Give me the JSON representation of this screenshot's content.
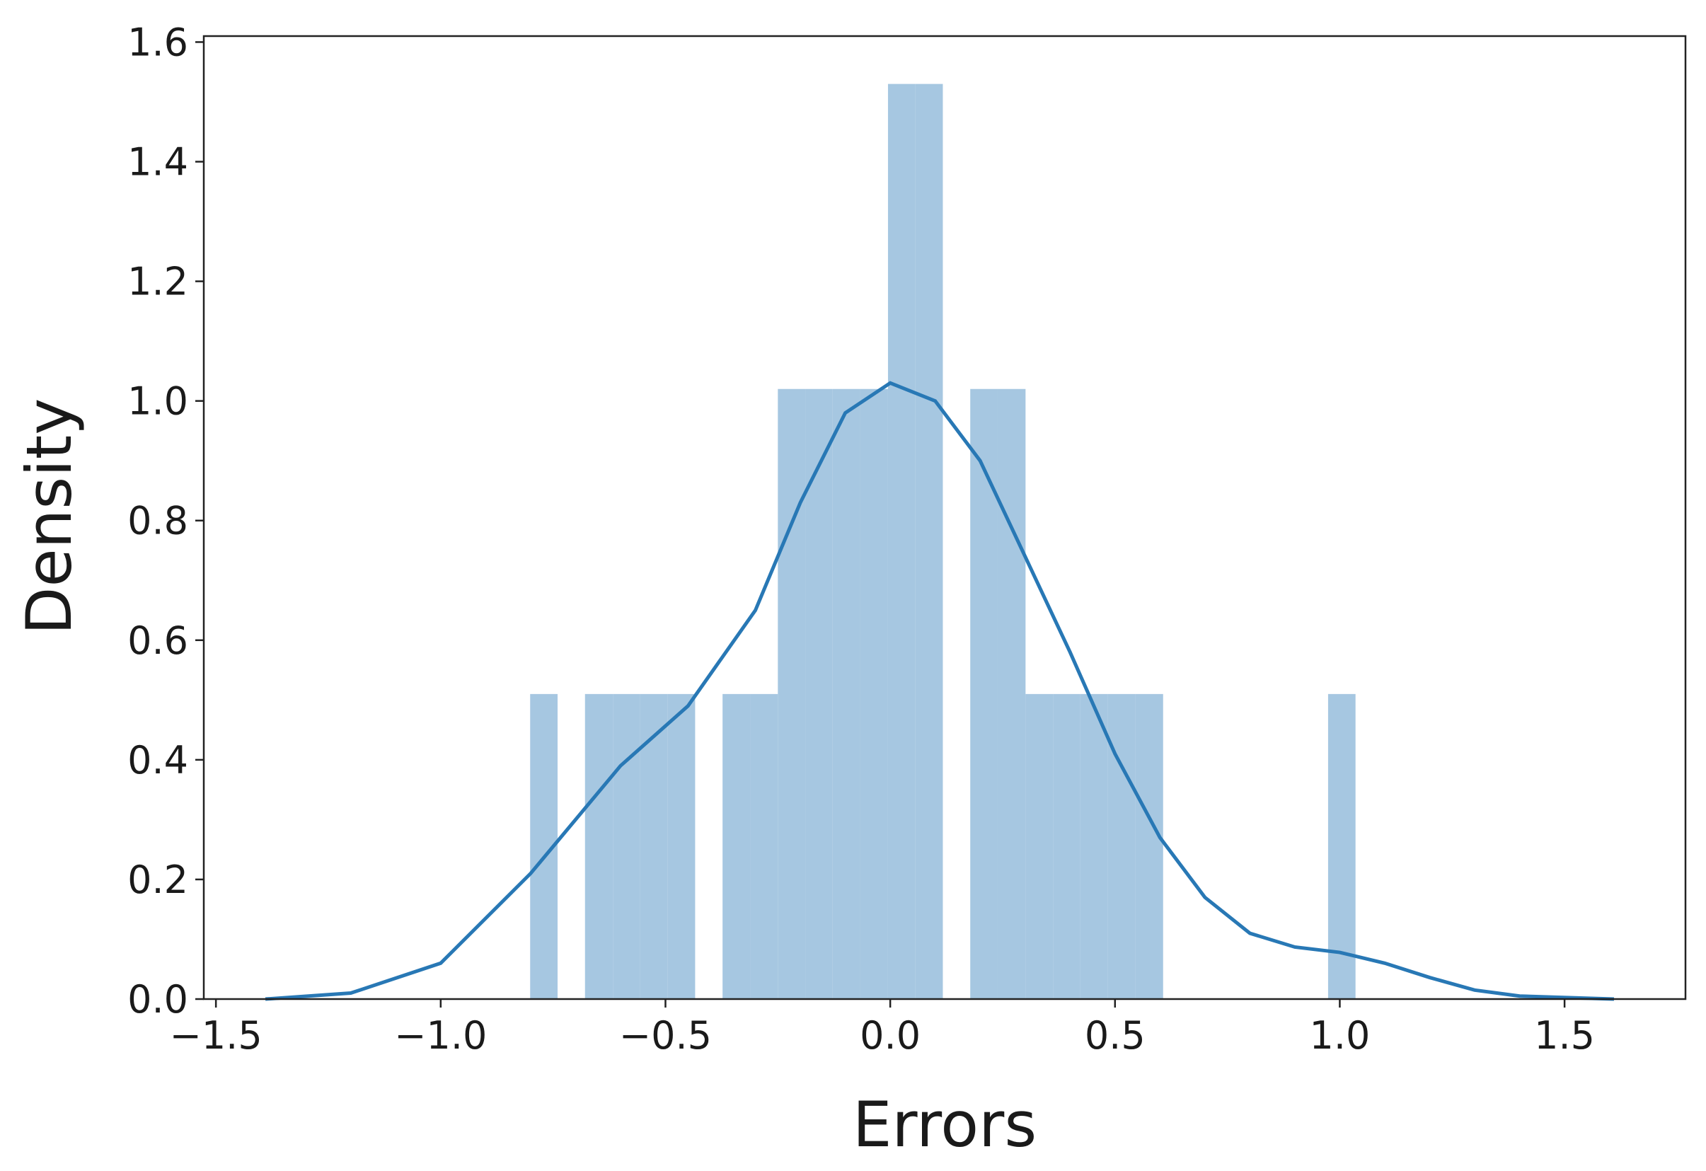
{
  "chart_data": {
    "type": "histogram",
    "xlabel": "Errors",
    "ylabel": "Density",
    "bins": [
      -0.801,
      -0.74,
      -0.679,
      -0.617,
      -0.556,
      -0.495,
      -0.434,
      -0.373,
      -0.311,
      -0.25,
      -0.189,
      -0.128,
      -0.067,
      -0.005,
      0.056,
      0.117,
      0.178,
      0.239,
      0.301,
      0.362,
      0.423,
      0.484,
      0.545,
      0.607,
      0.668,
      0.729,
      0.79,
      0.851,
      0.913,
      0.974,
      1.035
    ],
    "values": [
      0.51,
      0,
      0.51,
      0.51,
      0.51,
      0.51,
      0,
      0.51,
      0.51,
      1.02,
      1.02,
      1.02,
      1.02,
      1.53,
      1.53,
      0,
      1.02,
      1.02,
      0.51,
      0.51,
      0.51,
      0.51,
      0.51,
      0,
      0,
      0,
      0,
      0,
      0,
      0.51
    ],
    "color": "#a6c7e1",
    "kde": {
      "color": "#2878b5",
      "x": [
        -1.39,
        -1.2,
        -1.0,
        -0.8,
        -0.6,
        -0.45,
        -0.3,
        -0.2,
        -0.1,
        0.0,
        0.1,
        0.2,
        0.3,
        0.4,
        0.5,
        0.6,
        0.7,
        0.8,
        0.9,
        1.0,
        1.1,
        1.2,
        1.3,
        1.4,
        1.61
      ],
      "y": [
        0.0,
        0.01,
        0.06,
        0.21,
        0.39,
        0.49,
        0.65,
        0.83,
        0.98,
        1.03,
        1.0,
        0.9,
        0.74,
        0.58,
        0.41,
        0.27,
        0.17,
        0.11,
        0.087,
        0.078,
        0.06,
        0.036,
        0.015,
        0.005,
        0.0
      ]
    },
    "xlim": [
      -1.527,
      1.769
    ],
    "ylim": [
      0,
      1.61
    ],
    "xticks": [
      {
        "value": -1.5,
        "label": "−1.5"
      },
      {
        "value": -1.0,
        "label": "−1.0"
      },
      {
        "value": -0.5,
        "label": "−0.5"
      },
      {
        "value": 0.0,
        "label": "0.0"
      },
      {
        "value": 0.5,
        "label": "0.5"
      },
      {
        "value": 1.0,
        "label": "1.0"
      },
      1.5
    ],
    "yticks": [
      {
        "value": 0.0,
        "label": "0.0"
      },
      0.2,
      0.4,
      0.6,
      0.8,
      {
        "value": 1.0,
        "label": "1.0"
      },
      1.2,
      1.4,
      1.6
    ]
  }
}
